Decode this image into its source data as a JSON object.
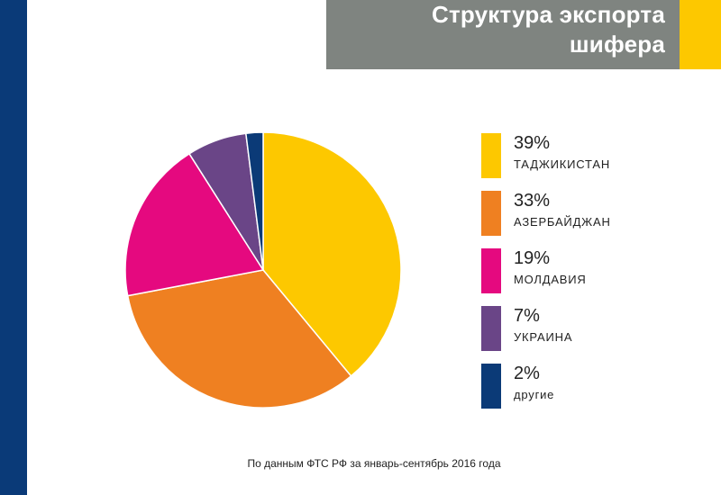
{
  "title": {
    "line1": "Структура экспорта",
    "line2": "шифера"
  },
  "source_note": "По данным ФТС РФ за январь-сентябрь 2016 года",
  "colors": {
    "left_bar": "#0a3a78",
    "title_box": "#7f8480",
    "title_accent": "#fdc800"
  },
  "chart_data": {
    "type": "pie",
    "start_angle_deg": 0,
    "direction": "clockwise",
    "slices": [
      {
        "label": "ТАДЖИКИСТАН",
        "value": 39,
        "display": "39%",
        "color": "#fdc800"
      },
      {
        "label": "АЗЕРБАЙДЖАН",
        "value": 33,
        "display": "33%",
        "color": "#ef8021"
      },
      {
        "label": "МОЛДАВИЯ",
        "value": 19,
        "display": "19%",
        "color": "#e5097f"
      },
      {
        "label": "УКРАИНА",
        "value": 7,
        "display": "7%",
        "color": "#6a4587"
      },
      {
        "label": "другие",
        "value": 2,
        "display": "2%",
        "color": "#0b3a77"
      }
    ]
  }
}
